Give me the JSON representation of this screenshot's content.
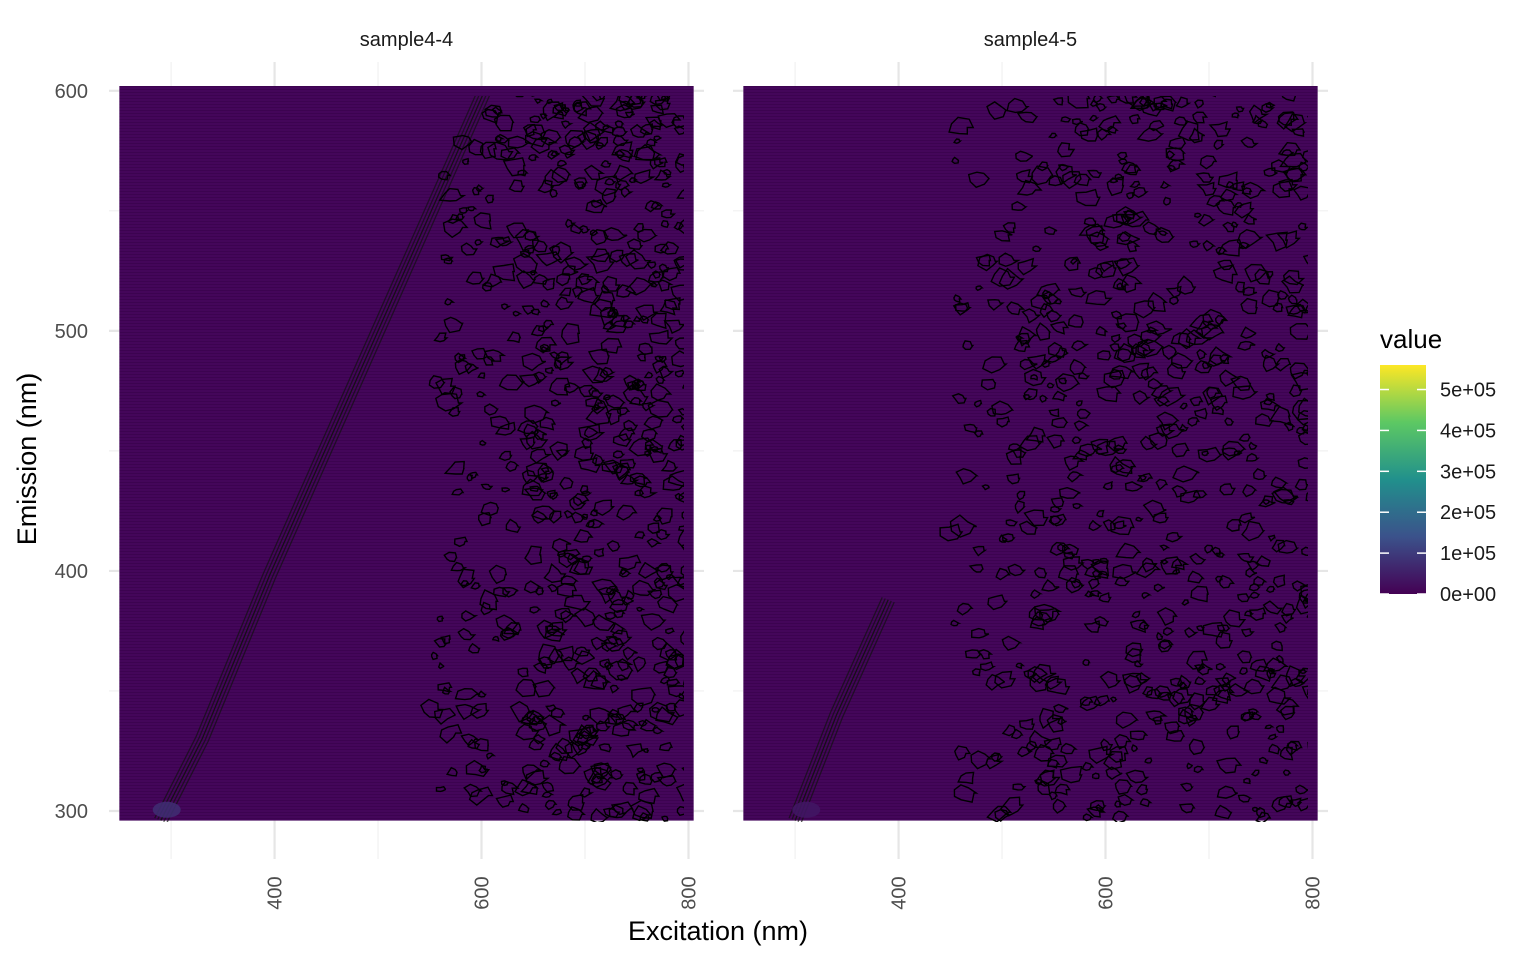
{
  "chart_data": {
    "type": "heatmap",
    "xlabel": "Excitation (nm)",
    "ylabel": "Emission (nm)",
    "x_range": [
      250,
      805
    ],
    "y_range": [
      296,
      602
    ],
    "xlim": [
      240,
      815
    ],
    "ylim": [
      280,
      612
    ],
    "x_ticks": [
      400,
      600,
      800
    ],
    "y_ticks": [
      300,
      400,
      500,
      600
    ],
    "grid": true,
    "contours": true,
    "legend": {
      "title": "value",
      "position": "right",
      "breaks": [
        0,
        100000,
        200000,
        300000,
        400000,
        500000
      ],
      "labels": [
        "0e+00",
        "1e+05",
        "2e+05",
        "3e+05",
        "4e+05",
        "5e+05"
      ],
      "max": 560000,
      "palette": [
        "#440154",
        "#3B528B",
        "#21908C",
        "#5DC863",
        "#FDE725"
      ]
    },
    "panels": [
      {
        "name": "sample4-4",
        "background_value": 0,
        "scatter_ridge": [
          [
            290,
            296
          ],
          [
            330,
            330
          ],
          [
            395,
            398
          ],
          [
            605,
            602
          ]
        ],
        "hotspot": [
          290,
          298
        ],
        "hotspot_value": 80000,
        "noise_region": {
          "x_start": 550,
          "x_end": 805,
          "dense_from": 650
        }
      },
      {
        "name": "sample4-5",
        "background_value": 0,
        "scatter_ridge": [
          [
            300,
            296
          ],
          [
            340,
            340
          ],
          [
            390,
            388
          ]
        ],
        "hotspot": [
          305,
          298
        ],
        "hotspot_value": 40000,
        "noise_region": {
          "x_start": 450,
          "x_end": 805,
          "dense_from": 550
        }
      }
    ]
  }
}
